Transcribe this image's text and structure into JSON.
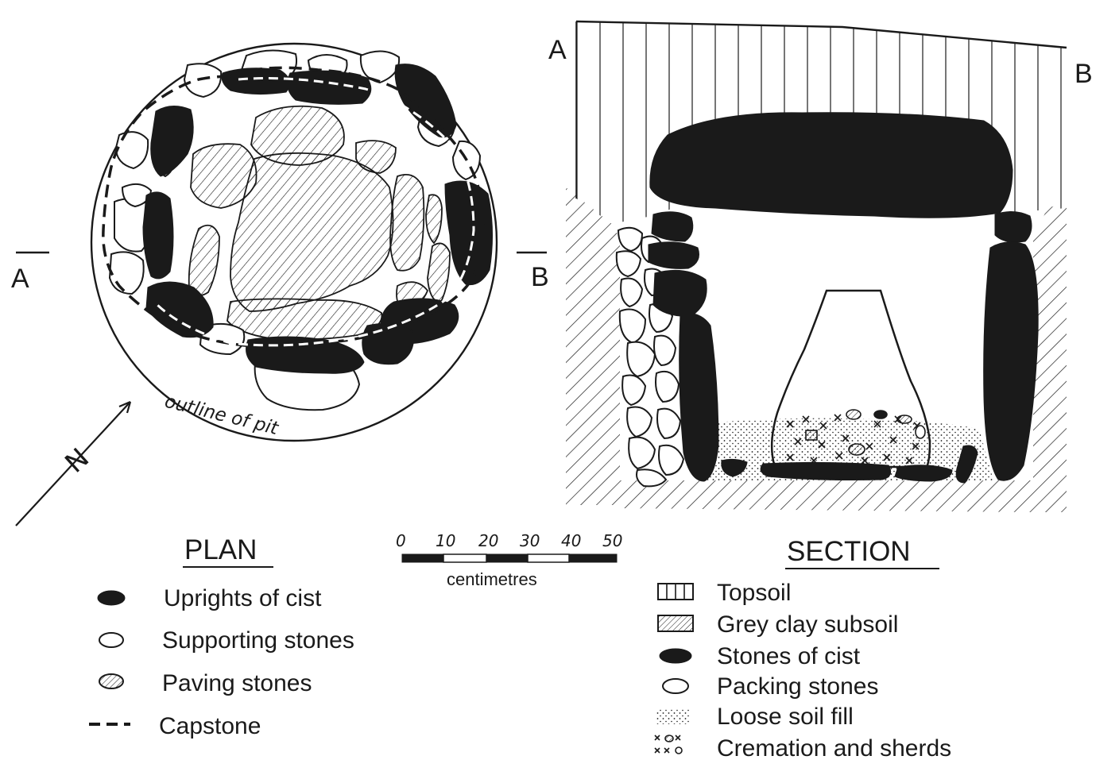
{
  "plan": {
    "title": "PLAN",
    "section_mark_left": "A",
    "section_mark_right": "B",
    "north_label": "N",
    "pit_label": "outline of pit",
    "legend": [
      {
        "symbol": "solid-oval-icon",
        "label": "Uprights of cist"
      },
      {
        "symbol": "outline-oval-icon",
        "label": "Supporting stones"
      },
      {
        "symbol": "hatched-oval-icon",
        "label": "Paving stones"
      },
      {
        "symbol": "dashed-line-icon",
        "label": "Capstone"
      }
    ]
  },
  "scale": {
    "ticks": [
      "0",
      "10",
      "20",
      "30",
      "40",
      "50"
    ],
    "unit": "centimetres"
  },
  "section": {
    "title": "SECTION",
    "label_left": "A",
    "label_right": "B",
    "legend": [
      {
        "symbol": "vertical-lines-icon",
        "label": "Topsoil"
      },
      {
        "symbol": "diagonal-hatch-icon",
        "label": "Grey clay subsoil"
      },
      {
        "symbol": "solid-oval-icon",
        "label": "Stones of cist"
      },
      {
        "symbol": "outline-oval-icon",
        "label": "Packing stones"
      },
      {
        "symbol": "stipple-icon",
        "label": "Loose soil fill"
      },
      {
        "symbol": "cross-marks-icon",
        "label": "Cremation and sherds"
      }
    ]
  }
}
